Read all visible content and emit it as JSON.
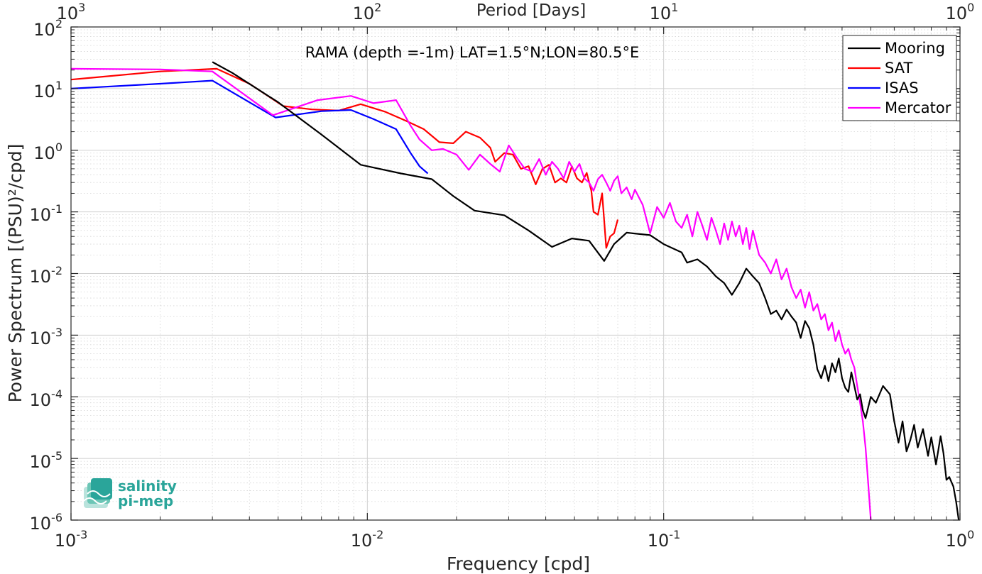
{
  "chart_data": {
    "type": "line",
    "title": "RAMA (depth =-1m) LAT=1.5°N;LON=80.5°E",
    "xlabel": "Frequency [cpd]",
    "ylabel": "Power Spectrum [(PSU)²/cpd]",
    "top_xlabel": "Period [Days]",
    "xscale": "log",
    "yscale": "log",
    "xlim": [
      0.001,
      1
    ],
    "ylim": [
      1e-06,
      100
    ],
    "grid": true,
    "legend_position": "top-right",
    "x_ticks": [
      "10",
      "10",
      "10",
      "10"
    ],
    "x_tick_exps": [
      "-3",
      "-2",
      "-1",
      "0"
    ],
    "top_ticks": [
      "10",
      "10",
      "10",
      "10"
    ],
    "top_tick_exps": [
      "3",
      "2",
      "1",
      "0"
    ],
    "y_ticks": [
      "10",
      "10",
      "10",
      "10",
      "10",
      "10",
      "10",
      "10",
      "10"
    ],
    "y_tick_exps": [
      "2",
      "1",
      "0",
      "-1",
      "-2",
      "-3",
      "-4",
      "-5",
      "-6"
    ],
    "series": [
      {
        "name": "Mooring",
        "color": "#000000",
        "points": [
          [
            0.003,
            27
          ],
          [
            0.0035,
            18
          ],
          [
            0.005,
            6
          ],
          [
            0.007,
            1.8
          ],
          [
            0.0095,
            0.58
          ],
          [
            0.013,
            0.42
          ],
          [
            0.0165,
            0.34
          ],
          [
            0.0195,
            0.18
          ],
          [
            0.023,
            0.105
          ],
          [
            0.029,
            0.088
          ],
          [
            0.035,
            0.05
          ],
          [
            0.042,
            0.027
          ],
          [
            0.049,
            0.037
          ],
          [
            0.056,
            0.034
          ],
          [
            0.063,
            0.016
          ],
          [
            0.068,
            0.03
          ],
          [
            0.075,
            0.046
          ],
          [
            0.09,
            0.042
          ],
          [
            0.1,
            0.03
          ],
          [
            0.115,
            0.022
          ],
          [
            0.12,
            0.015
          ],
          [
            0.13,
            0.017
          ],
          [
            0.14,
            0.013
          ],
          [
            0.15,
            0.009
          ],
          [
            0.16,
            0.007
          ],
          [
            0.17,
            0.0045
          ],
          [
            0.18,
            0.007
          ],
          [
            0.19,
            0.012
          ],
          [
            0.2,
            0.009
          ],
          [
            0.21,
            0.007
          ],
          [
            0.22,
            0.004
          ],
          [
            0.23,
            0.0022
          ],
          [
            0.24,
            0.0025
          ],
          [
            0.25,
            0.0018
          ],
          [
            0.26,
            0.0026
          ],
          [
            0.27,
            0.002
          ],
          [
            0.28,
            0.0016
          ],
          [
            0.29,
            0.0009
          ],
          [
            0.3,
            0.0017
          ],
          [
            0.31,
            0.0013
          ],
          [
            0.32,
            0.0007
          ],
          [
            0.33,
            0.00028
          ],
          [
            0.34,
            0.0002
          ],
          [
            0.35,
            0.00032
          ],
          [
            0.36,
            0.00018
          ],
          [
            0.37,
            0.00035
          ],
          [
            0.38,
            0.00025
          ],
          [
            0.39,
            0.00042
          ],
          [
            0.4,
            0.0002
          ],
          [
            0.41,
            0.00014
          ],
          [
            0.42,
            0.00012
          ],
          [
            0.43,
            0.00025
          ],
          [
            0.44,
            0.00015
          ],
          [
            0.45,
            9e-05
          ],
          [
            0.46,
            0.00011
          ],
          [
            0.47,
            6e-05
          ],
          [
            0.48,
            4.5e-05
          ],
          [
            0.5,
            0.0001
          ],
          [
            0.52,
            8e-05
          ],
          [
            0.55,
            0.00015
          ],
          [
            0.58,
            0.00011
          ],
          [
            0.6,
            4e-05
          ],
          [
            0.62,
            1.8e-05
          ],
          [
            0.64,
            4e-05
          ],
          [
            0.66,
            1.3e-05
          ],
          [
            0.68,
            2e-05
          ],
          [
            0.7,
            3.5e-05
          ],
          [
            0.72,
            1.5e-05
          ],
          [
            0.75,
            3e-05
          ],
          [
            0.78,
            1.1e-05
          ],
          [
            0.8,
            2.2e-05
          ],
          [
            0.83,
            8e-06
          ],
          [
            0.86,
            2.3e-05
          ],
          [
            0.88,
            1.2e-05
          ],
          [
            0.9,
            4.5e-06
          ],
          [
            0.92,
            5e-06
          ],
          [
            0.95,
            3.5e-06
          ],
          [
            0.97,
            2e-06
          ],
          [
            0.99,
            1e-06
          ]
        ]
      },
      {
        "name": "SAT",
        "color": "#ff0000",
        "points": [
          [
            0.001,
            14
          ],
          [
            0.002,
            19
          ],
          [
            0.0031,
            21
          ],
          [
            0.004,
            12
          ],
          [
            0.0052,
            5.2
          ],
          [
            0.0065,
            4.6
          ],
          [
            0.008,
            4.4
          ],
          [
            0.0095,
            5.6
          ],
          [
            0.0115,
            4.2
          ],
          [
            0.0135,
            3
          ],
          [
            0.0155,
            2.2
          ],
          [
            0.0175,
            1.35
          ],
          [
            0.0195,
            1.3
          ],
          [
            0.0215,
            2
          ],
          [
            0.024,
            1.6
          ],
          [
            0.026,
            1.1
          ],
          [
            0.027,
            0.65
          ],
          [
            0.029,
            0.9
          ],
          [
            0.031,
            0.85
          ],
          [
            0.033,
            0.5
          ],
          [
            0.035,
            0.55
          ],
          [
            0.037,
            0.28
          ],
          [
            0.039,
            0.5
          ],
          [
            0.041,
            0.58
          ],
          [
            0.043,
            0.3
          ],
          [
            0.045,
            0.35
          ],
          [
            0.047,
            0.3
          ],
          [
            0.049,
            0.55
          ],
          [
            0.051,
            0.35
          ],
          [
            0.053,
            0.3
          ],
          [
            0.055,
            0.43
          ],
          [
            0.057,
            0.22
          ],
          [
            0.058,
            0.1
          ],
          [
            0.06,
            0.09
          ],
          [
            0.062,
            0.2
          ],
          [
            0.064,
            0.026
          ],
          [
            0.066,
            0.04
          ],
          [
            0.068,
            0.045
          ],
          [
            0.07,
            0.075
          ]
        ]
      },
      {
        "name": "ISAS",
        "color": "#0000ff",
        "points": [
          [
            0.001,
            10
          ],
          [
            0.002,
            12
          ],
          [
            0.003,
            13.5
          ],
          [
            0.0049,
            3.4
          ],
          [
            0.007,
            4.3
          ],
          [
            0.0088,
            4.5
          ],
          [
            0.0105,
            3.2
          ],
          [
            0.0125,
            2.2
          ],
          [
            0.014,
            0.9
          ],
          [
            0.015,
            0.55
          ],
          [
            0.016,
            0.42
          ]
        ]
      },
      {
        "name": "Mercator",
        "color": "#ff00ff",
        "points": [
          [
            0.001,
            21
          ],
          [
            0.002,
            20.5
          ],
          [
            0.003,
            19
          ],
          [
            0.0048,
            3.7
          ],
          [
            0.0068,
            6.5
          ],
          [
            0.0088,
            7.6
          ],
          [
            0.0105,
            5.8
          ],
          [
            0.0125,
            6.5
          ],
          [
            0.014,
            2.5
          ],
          [
            0.015,
            1.5
          ],
          [
            0.0165,
            1.0
          ],
          [
            0.018,
            1.05
          ],
          [
            0.02,
            0.85
          ],
          [
            0.022,
            0.48
          ],
          [
            0.024,
            0.85
          ],
          [
            0.026,
            0.6
          ],
          [
            0.028,
            0.45
          ],
          [
            0.03,
            1.2
          ],
          [
            0.032,
            0.75
          ],
          [
            0.034,
            0.5
          ],
          [
            0.036,
            0.45
          ],
          [
            0.038,
            0.72
          ],
          [
            0.04,
            0.4
          ],
          [
            0.042,
            0.65
          ],
          [
            0.044,
            0.5
          ],
          [
            0.046,
            0.35
          ],
          [
            0.048,
            0.65
          ],
          [
            0.05,
            0.45
          ],
          [
            0.052,
            0.6
          ],
          [
            0.054,
            0.35
          ],
          [
            0.056,
            0.3
          ],
          [
            0.058,
            0.22
          ],
          [
            0.06,
            0.34
          ],
          [
            0.062,
            0.4
          ],
          [
            0.064,
            0.3
          ],
          [
            0.066,
            0.22
          ],
          [
            0.068,
            0.32
          ],
          [
            0.07,
            0.38
          ],
          [
            0.072,
            0.2
          ],
          [
            0.075,
            0.25
          ],
          [
            0.078,
            0.16
          ],
          [
            0.08,
            0.23
          ],
          [
            0.085,
            0.13
          ],
          [
            0.09,
            0.045
          ],
          [
            0.095,
            0.12
          ],
          [
            0.1,
            0.08
          ],
          [
            0.105,
            0.14
          ],
          [
            0.11,
            0.07
          ],
          [
            0.115,
            0.055
          ],
          [
            0.12,
            0.09
          ],
          [
            0.125,
            0.04
          ],
          [
            0.13,
            0.1
          ],
          [
            0.135,
            0.06
          ],
          [
            0.14,
            0.035
          ],
          [
            0.145,
            0.08
          ],
          [
            0.15,
            0.05
          ],
          [
            0.155,
            0.03
          ],
          [
            0.16,
            0.065
          ],
          [
            0.165,
            0.035
          ],
          [
            0.17,
            0.07
          ],
          [
            0.175,
            0.04
          ],
          [
            0.18,
            0.06
          ],
          [
            0.185,
            0.03
          ],
          [
            0.19,
            0.055
          ],
          [
            0.195,
            0.025
          ],
          [
            0.2,
            0.05
          ],
          [
            0.21,
            0.02
          ],
          [
            0.22,
            0.015
          ],
          [
            0.23,
            0.01
          ],
          [
            0.24,
            0.017
          ],
          [
            0.25,
            0.008
          ],
          [
            0.26,
            0.012
          ],
          [
            0.27,
            0.006
          ],
          [
            0.28,
            0.004
          ],
          [
            0.29,
            0.0055
          ],
          [
            0.3,
            0.0028
          ],
          [
            0.31,
            0.005
          ],
          [
            0.32,
            0.0025
          ],
          [
            0.33,
            0.0032
          ],
          [
            0.34,
            0.0018
          ],
          [
            0.35,
            0.0022
          ],
          [
            0.36,
            0.0012
          ],
          [
            0.37,
            0.0016
          ],
          [
            0.38,
            0.0008
          ],
          [
            0.39,
            0.0012
          ],
          [
            0.4,
            0.0007
          ],
          [
            0.41,
            0.0005
          ],
          [
            0.42,
            0.0006
          ],
          [
            0.43,
            0.0004
          ],
          [
            0.44,
            0.0003
          ],
          [
            0.45,
            0.00015
          ],
          [
            0.46,
            8e-05
          ],
          [
            0.47,
            4e-05
          ],
          [
            0.48,
            1.5e-05
          ],
          [
            0.49,
            4e-06
          ],
          [
            0.5,
            1e-06
          ]
        ]
      }
    ]
  },
  "branding": {
    "logo_line1": "salinity",
    "logo_line2": "pi-mep",
    "logo_color": "#2aa59a"
  }
}
